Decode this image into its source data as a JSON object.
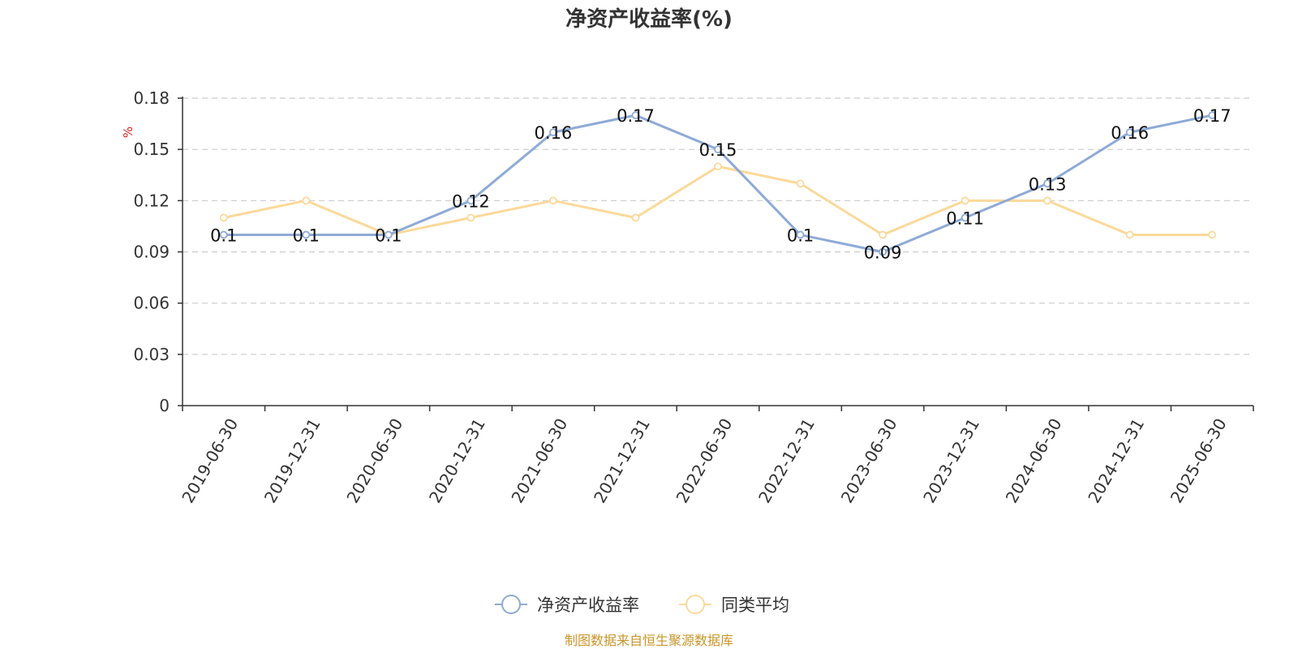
{
  "chart_data": {
    "type": "line",
    "title": "净资产收益率(%)",
    "ylabel": "%",
    "xlabel": "",
    "categories": [
      "2019-06-30",
      "2019-12-31",
      "2020-06-30",
      "2020-12-31",
      "2021-06-30",
      "2021-12-31",
      "2022-06-30",
      "2022-12-31",
      "2023-06-30",
      "2023-12-31",
      "2024-06-30",
      "2024-12-31",
      "2025-06-30"
    ],
    "ylim": [
      0,
      0.18
    ],
    "yticks": [
      "0",
      "0.03",
      "0.06",
      "0.09",
      "0.12",
      "0.15",
      "0.18"
    ],
    "grid": true,
    "legend_position": "bottom-center",
    "series": [
      {
        "name": "净资产收益率",
        "color": "#8eaad6",
        "values": [
          0.1,
          0.1,
          0.1,
          0.12,
          0.16,
          0.17,
          0.15,
          0.1,
          0.09,
          0.11,
          0.13,
          0.16,
          0.17
        ],
        "labels": [
          "0.1",
          "0.1",
          "0.1",
          "0.12",
          "0.16",
          "0.17",
          "0.15",
          "0.1",
          "0.09",
          "0.11",
          "0.13",
          "0.16",
          "0.17"
        ]
      },
      {
        "name": "同类平均",
        "color": "#fbd99a",
        "values": [
          0.11,
          0.12,
          0.1,
          0.11,
          0.12,
          0.11,
          0.14,
          0.13,
          0.1,
          0.12,
          0.12,
          0.1,
          0.1
        ]
      }
    ]
  },
  "footer": {
    "source": "制图数据来自恒生聚源数据库"
  }
}
